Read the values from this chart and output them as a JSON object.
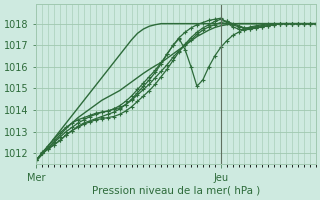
{
  "xlabel": "Pression niveau de la mer( hPa )",
  "ylim": [
    1011.5,
    1018.9
  ],
  "xlim": [
    0,
    47
  ],
  "yticks": [
    1012,
    1013,
    1014,
    1015,
    1016,
    1017,
    1018
  ],
  "xtick_positions": [
    0,
    31
  ],
  "xtick_labels": [
    "Mer",
    "Jeu"
  ],
  "bg_color": "#ceeae0",
  "grid_color": "#a0c8b0",
  "line_color": "#2d6b3a",
  "vline_x": 31,
  "vline_color": "#607060",
  "series": [
    {
      "y": [
        1011.7,
        1012.0,
        1012.25,
        1012.5,
        1012.75,
        1013.0,
        1013.2,
        1013.4,
        1013.55,
        1013.7,
        1013.8,
        1013.9,
        1013.95,
        1014.05,
        1014.1,
        1014.25,
        1014.45,
        1014.7,
        1014.95,
        1015.2,
        1015.5,
        1015.8,
        1016.1,
        1016.45,
        1016.75,
        1017.0,
        1017.25,
        1017.5,
        1017.7,
        1017.85,
        1017.95,
        1018.05,
        1018.1,
        1018.0,
        1017.9,
        1017.8,
        1017.75,
        1017.8,
        1017.85,
        1017.9,
        1017.95,
        1018.0,
        1018.0,
        1018.0,
        1018.0,
        1018.0,
        1018.0,
        1018.0
      ],
      "marker": true,
      "lw": 0.9
    },
    {
      "y": [
        1011.7,
        1012.0,
        1012.2,
        1012.4,
        1012.6,
        1012.85,
        1013.05,
        1013.2,
        1013.35,
        1013.45,
        1013.55,
        1013.6,
        1013.65,
        1013.7,
        1013.8,
        1013.95,
        1014.15,
        1014.4,
        1014.65,
        1014.9,
        1015.2,
        1015.55,
        1015.9,
        1016.3,
        1016.7,
        1017.05,
        1017.35,
        1017.6,
        1017.8,
        1017.95,
        1018.1,
        1018.2,
        1018.1,
        1017.95,
        1017.85,
        1017.8,
        1017.8,
        1017.85,
        1017.9,
        1017.95,
        1018.0,
        1018.0,
        1018.0,
        1018.0,
        1018.0,
        1018.0,
        1018.0,
        1018.0
      ],
      "marker": true,
      "lw": 0.9
    },
    {
      "y": [
        1011.7,
        1012.0,
        1012.2,
        1012.4,
        1012.6,
        1012.85,
        1013.05,
        1013.25,
        1013.4,
        1013.5,
        1013.6,
        1013.7,
        1013.8,
        1013.9,
        1014.05,
        1014.25,
        1014.5,
        1014.8,
        1015.1,
        1015.4,
        1015.75,
        1016.15,
        1016.6,
        1017.0,
        1017.3,
        1016.8,
        1016.0,
        1015.1,
        1015.4,
        1016.0,
        1016.5,
        1016.9,
        1017.2,
        1017.45,
        1017.6,
        1017.75,
        1017.85,
        1017.9,
        1017.95,
        1018.0,
        1018.0,
        1018.0,
        1018.0,
        1018.0,
        1018.0,
        1018.0,
        1018.0,
        1018.0
      ],
      "marker": true,
      "lw": 0.9
    },
    {
      "y": [
        1011.7,
        1012.05,
        1012.35,
        1012.65,
        1012.95,
        1013.2,
        1013.4,
        1013.55,
        1013.65,
        1013.75,
        1013.85,
        1013.9,
        1013.95,
        1014.05,
        1014.2,
        1014.4,
        1014.65,
        1014.95,
        1015.25,
        1015.55,
        1015.85,
        1016.2,
        1016.6,
        1017.0,
        1017.35,
        1017.6,
        1017.8,
        1017.95,
        1018.05,
        1018.15,
        1018.2,
        1018.25,
        1018.05,
        1017.85,
        1017.75,
        1017.7,
        1017.75,
        1017.8,
        1017.85,
        1017.9,
        1017.95,
        1018.0,
        1018.0,
        1018.0,
        1018.0,
        1018.0,
        1018.0,
        1018.0
      ],
      "marker": true,
      "lw": 0.9
    },
    {
      "y": [
        1011.65,
        1012.0,
        1012.35,
        1012.7,
        1013.05,
        1013.4,
        1013.75,
        1014.1,
        1014.45,
        1014.8,
        1015.15,
        1015.5,
        1015.85,
        1016.2,
        1016.55,
        1016.9,
        1017.25,
        1017.55,
        1017.75,
        1017.88,
        1017.95,
        1018.0,
        1018.0,
        1018.0,
        1018.0,
        1018.0,
        1018.0,
        1018.0,
        1018.0,
        1018.0,
        1018.0,
        1018.0,
        1018.0,
        1018.0,
        1018.0,
        1018.0,
        1018.0,
        1018.0,
        1018.0,
        1018.0,
        1018.0,
        1018.0,
        1018.0,
        1018.0,
        1018.0,
        1018.0,
        1018.0,
        1018.0
      ],
      "marker": false,
      "lw": 1.0
    },
    {
      "y": [
        1011.65,
        1011.95,
        1012.25,
        1012.55,
        1012.85,
        1013.15,
        1013.4,
        1013.65,
        1013.85,
        1014.05,
        1014.25,
        1014.45,
        1014.6,
        1014.75,
        1014.9,
        1015.1,
        1015.3,
        1015.5,
        1015.7,
        1015.88,
        1016.05,
        1016.2,
        1016.4,
        1016.6,
        1016.8,
        1017.0,
        1017.2,
        1017.4,
        1017.55,
        1017.7,
        1017.82,
        1017.9,
        1017.95,
        1017.98,
        1018.0,
        1018.0,
        1018.0,
        1018.0,
        1018.0,
        1018.0,
        1018.0,
        1018.0,
        1018.0,
        1018.0,
        1018.0,
        1018.0,
        1018.0,
        1018.0
      ],
      "marker": false,
      "lw": 1.0
    }
  ]
}
